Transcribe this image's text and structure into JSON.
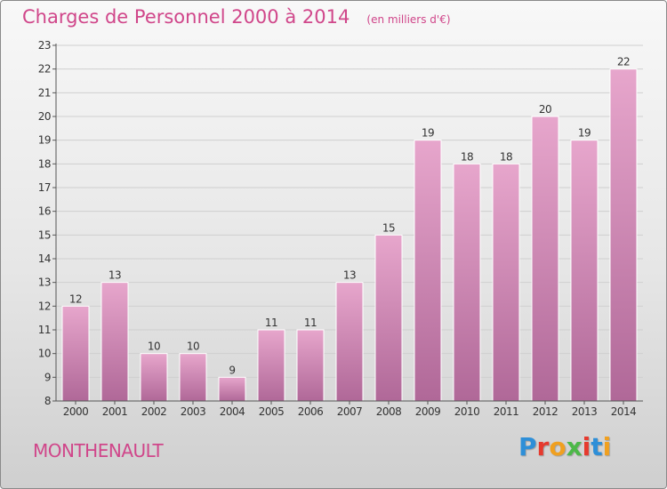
{
  "header": {
    "title": "Charges de Personnel 2000 à 2014",
    "subtitle": "(en milliers d'€)"
  },
  "footer": {
    "commune": "MONTHENAULT",
    "brand": "Proxiti",
    "brand_colors": [
      "#2e8fd8",
      "#e63a2e",
      "#f0a020",
      "#4cb848",
      "#e63a2e",
      "#2e8fd8",
      "#f0a020"
    ]
  },
  "colors": {
    "accent": "#d0468a",
    "bar_top": "#e7a6cc",
    "bar_bottom": "#b06898",
    "bar_stroke": "#ffffff",
    "grid": "#cfcfcf",
    "axis": "#555555"
  },
  "chart_data": {
    "type": "bar",
    "title": "Charges de Personnel 2000 à 2014",
    "subtitle": "(en milliers d'€)",
    "categories": [
      "2000",
      "2001",
      "2002",
      "2003",
      "2004",
      "2005",
      "2006",
      "2007",
      "2008",
      "2009",
      "2010",
      "2011",
      "2012",
      "2013",
      "2014"
    ],
    "values": [
      12,
      13,
      10,
      10,
      9,
      11,
      11,
      13,
      15,
      19,
      18,
      18,
      20,
      19,
      22
    ],
    "ylim": [
      8,
      23
    ],
    "yticks": [
      8,
      9,
      10,
      11,
      12,
      13,
      14,
      15,
      16,
      17,
      18,
      19,
      20,
      21,
      22,
      23
    ],
    "grid": true,
    "legend": "none"
  }
}
